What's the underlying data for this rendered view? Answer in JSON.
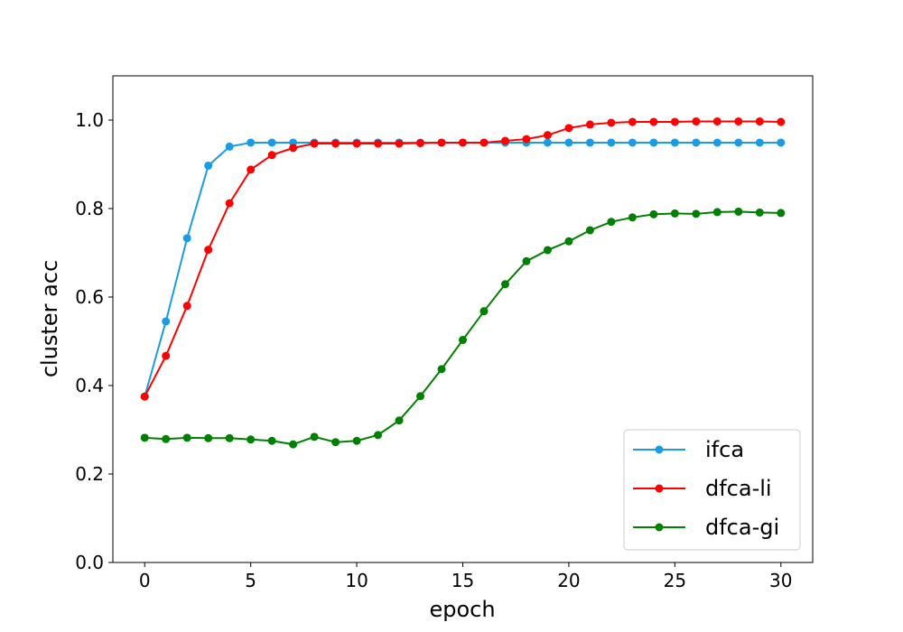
{
  "chart_data": {
    "type": "line",
    "xlabel": "epoch",
    "ylabel": "cluster acc",
    "xlim": [
      -1.5,
      31.5
    ],
    "ylim": [
      0.0,
      1.1
    ],
    "xticks": [
      "0",
      "5",
      "10",
      "15",
      "20",
      "25",
      "30"
    ],
    "yticks": [
      "0.0",
      "0.2",
      "0.4",
      "0.6",
      "0.8",
      "1.0"
    ],
    "grid": false,
    "legend_position": "bottom-right",
    "x": [
      0,
      1,
      2,
      3,
      4,
      5,
      6,
      7,
      8,
      9,
      10,
      11,
      12,
      13,
      14,
      15,
      16,
      17,
      18,
      19,
      20,
      21,
      22,
      23,
      24,
      25,
      26,
      27,
      28,
      29,
      30
    ],
    "series": [
      {
        "name": "ifca",
        "color": "#1a9be6",
        "values": [
          0.375,
          0.545,
          0.733,
          0.897,
          0.94,
          0.949,
          0.949,
          0.949,
          0.949,
          0.949,
          0.949,
          0.949,
          0.949,
          0.949,
          0.949,
          0.949,
          0.949,
          0.949,
          0.949,
          0.949,
          0.949,
          0.949,
          0.949,
          0.949,
          0.949,
          0.949,
          0.949,
          0.949,
          0.949,
          0.949,
          0.949
        ]
      },
      {
        "name": "dfca-li",
        "color": "#ff0000",
        "values": [
          0.375,
          0.467,
          0.58,
          0.707,
          0.812,
          0.888,
          0.921,
          0.937,
          0.947,
          0.947,
          0.947,
          0.947,
          0.947,
          0.948,
          0.949,
          0.949,
          0.949,
          0.953,
          0.957,
          0.966,
          0.982,
          0.99,
          0.994,
          0.996,
          0.996,
          0.996,
          0.997,
          0.997,
          0.997,
          0.997,
          0.996
        ]
      },
      {
        "name": "dfca-gi",
        "color": "#008000",
        "values": [
          0.282,
          0.279,
          0.282,
          0.281,
          0.281,
          0.278,
          0.275,
          0.267,
          0.284,
          0.272,
          0.275,
          0.288,
          0.321,
          0.376,
          0.437,
          0.503,
          0.568,
          0.629,
          0.681,
          0.706,
          0.726,
          0.751,
          0.77,
          0.78,
          0.787,
          0.789,
          0.788,
          0.792,
          0.793,
          0.791,
          0.79
        ]
      }
    ]
  }
}
